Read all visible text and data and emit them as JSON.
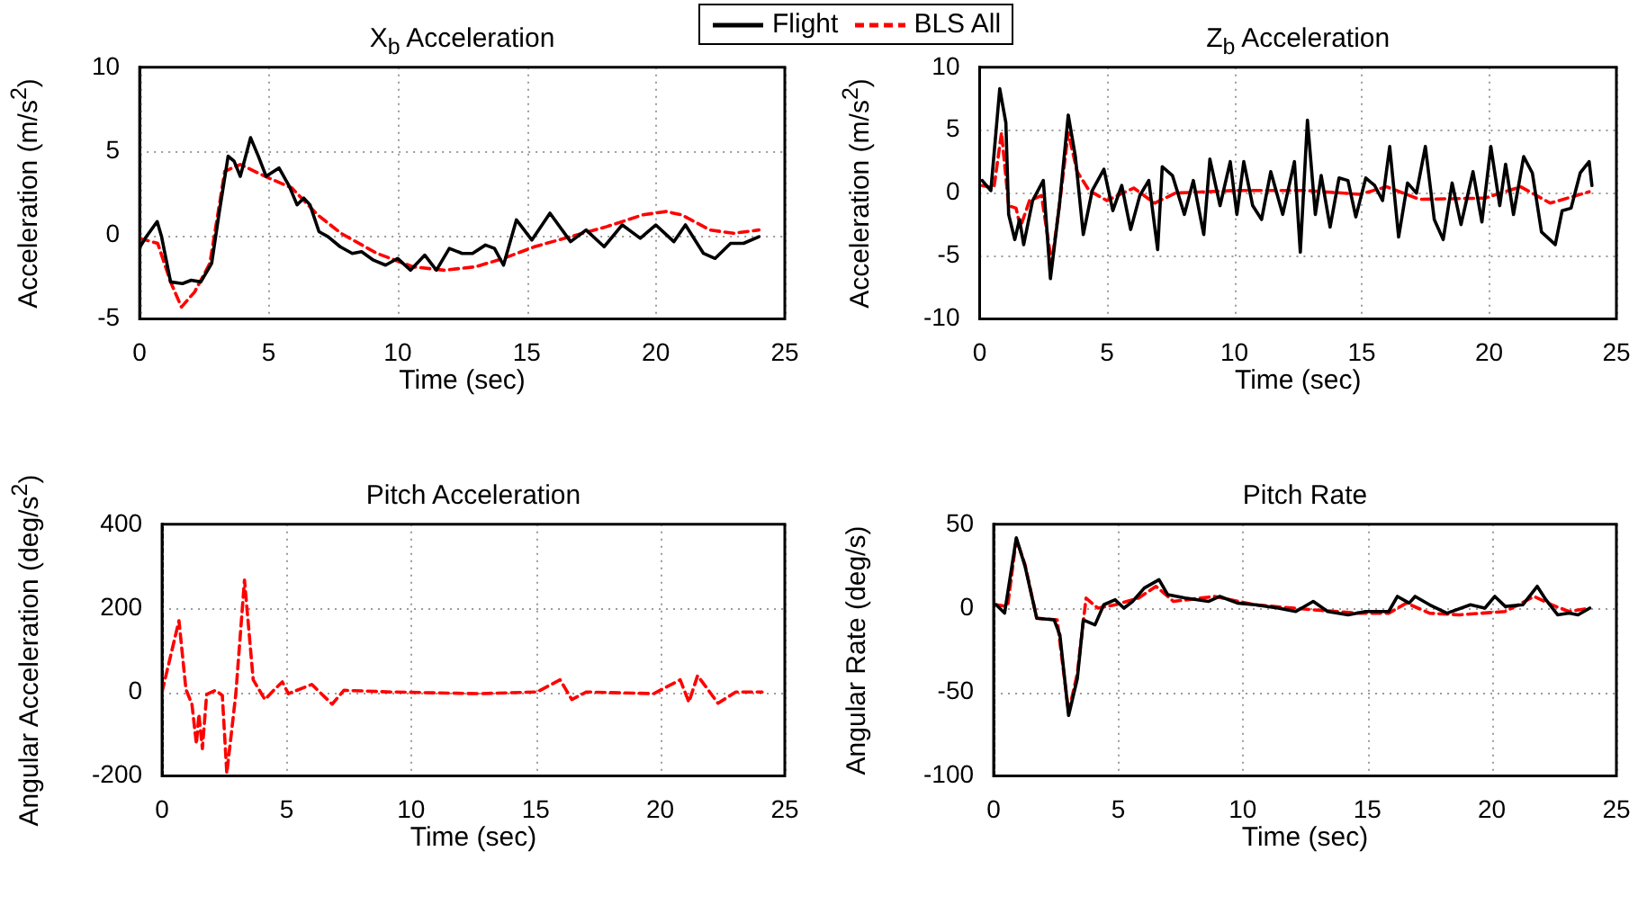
{
  "chart_data": [
    {
      "type": "line",
      "title": "X$_{b}$ Acceleration",
      "xlabel": "Time (sec)",
      "ylabel": "Acceleration (m/s$^{2}$)",
      "xlim": [
        0,
        25
      ],
      "xticks": [
        0,
        5,
        10,
        15,
        20,
        25
      ],
      "ylim": [
        -5,
        10
      ],
      "yticks": [
        -5,
        0,
        5,
        10
      ],
      "grid": true,
      "legend": "top right",
      "series": [
        {
          "name": "Flight",
          "color": "#000000",
          "line_style": "solid",
          "x": [
            0.02,
            0.26,
            0.68,
            0.85,
            1.2,
            1.66,
            2.0,
            2.37,
            2.79,
            3.07,
            3.43,
            3.66,
            3.9,
            4.3,
            4.6,
            4.9,
            5.4,
            5.8,
            6.1,
            6.36,
            6.6,
            6.95,
            7.3,
            7.77,
            8.24,
            8.6,
            9.06,
            9.53,
            10.0,
            10.5,
            11.05,
            11.5,
            12.0,
            12.5,
            12.9,
            13.4,
            13.75,
            14.1,
            14.6,
            15.2,
            15.9,
            16.7,
            17.3,
            18.0,
            18.7,
            19.4,
            20.0,
            20.7,
            21.15,
            21.85,
            22.3,
            22.9,
            23.4,
            24.0
          ],
          "values": [
            -0.7,
            -0.1,
            0.8,
            -0.1,
            -2.8,
            -2.9,
            -2.7,
            -2.8,
            -1.7,
            1.2,
            4.7,
            4.4,
            3.5,
            5.8,
            4.7,
            3.5,
            4.0,
            2.9,
            1.8,
            2.2,
            1.8,
            0.2,
            -0.1,
            -0.7,
            -1.1,
            -1.0,
            -1.5,
            -1.8,
            -1.4,
            -2.1,
            -1.2,
            -2.1,
            -0.8,
            -1.1,
            -1.1,
            -0.6,
            -0.8,
            -1.8,
            0.9,
            -0.3,
            1.3,
            -0.4,
            0.3,
            -0.7,
            0.6,
            -0.2,
            0.6,
            -0.4,
            0.6,
            -1.1,
            -1.4,
            -0.5,
            -0.5,
            -0.1
          ]
        },
        {
          "name": "BLS All",
          "color": "#ff0000",
          "line_style": "dashed",
          "x": [
            0,
            0.7,
            1.2,
            1.62,
            2.13,
            2.72,
            3.3,
            3.9,
            5.0,
            5.9,
            6.9,
            7.8,
            9.2,
            10.6,
            11.8,
            13.0,
            14.1,
            15.3,
            16.7,
            18.1,
            19.5,
            20.4,
            21.0,
            22.1,
            23.0,
            24.0
          ],
          "values": [
            -0.2,
            -0.5,
            -2.8,
            -4.3,
            -3.4,
            -1.7,
            3.8,
            4.2,
            3.4,
            2.8,
            1.2,
            0.1,
            -1.1,
            -1.9,
            -2.1,
            -1.9,
            -1.4,
            -0.7,
            -0.1,
            0.5,
            1.2,
            1.4,
            1.2,
            0.3,
            0.1,
            0.3
          ]
        }
      ]
    },
    {
      "type": "line",
      "title": "Z$_{b}$ Acceleration",
      "xlabel": "Time (sec)",
      "ylabel": "Acceleration (m/s$^{2}$)",
      "xlim": [
        0,
        25
      ],
      "xticks": [
        0,
        5,
        10,
        15,
        20,
        25
      ],
      "ylim": [
        -10,
        10
      ],
      "yticks": [
        -10,
        -5,
        0,
        5,
        10
      ],
      "grid": true,
      "series": [
        {
          "color": "#000000",
          "line_style": "solid",
          "x": [
            0.1,
            0.44,
            0.79,
            1.03,
            1.14,
            1.38,
            1.57,
            1.73,
            2.08,
            2.5,
            2.78,
            3.13,
            3.48,
            3.76,
            4.07,
            4.42,
            4.88,
            5.23,
            5.58,
            5.93,
            6.29,
            6.64,
            6.99,
            7.17,
            7.57,
            8.04,
            8.39,
            8.8,
            9.04,
            9.44,
            9.84,
            10.1,
            10.37,
            10.72,
            11.07,
            11.43,
            11.9,
            12.36,
            12.59,
            12.87,
            13.18,
            13.41,
            13.76,
            14.11,
            14.46,
            14.77,
            15.16,
            15.51,
            15.82,
            16.1,
            16.45,
            16.8,
            17.15,
            17.5,
            17.85,
            18.2,
            18.55,
            18.9,
            19.37,
            19.72,
            20.07,
            20.42,
            20.65,
            20.96,
            21.36,
            21.7,
            22.06,
            22.6,
            22.87,
            23.22,
            23.58,
            23.93,
            24.04
          ],
          "values": [
            1.0,
            0.2,
            8.3,
            5.6,
            -1.7,
            -3.7,
            -2.1,
            -4.1,
            -0.6,
            1.0,
            -6.8,
            -1.0,
            6.2,
            2.9,
            -3.3,
            0.2,
            1.9,
            -1.4,
            0.6,
            -2.9,
            -0.2,
            1.0,
            -4.5,
            2.1,
            1.4,
            -1.7,
            1.0,
            -3.3,
            2.7,
            -1.0,
            2.5,
            -1.7,
            2.5,
            -1.0,
            -2.1,
            1.7,
            -1.7,
            2.5,
            -4.7,
            5.8,
            -1.7,
            1.4,
            -2.7,
            1.2,
            1.0,
            -1.9,
            1.2,
            0.6,
            -0.6,
            3.7,
            -3.5,
            0.8,
            0,
            3.7,
            -2.1,
            -3.7,
            0.8,
            -2.5,
            1.7,
            -2.3,
            3.7,
            -1.0,
            2.3,
            -1.7,
            2.9,
            1.6,
            -3.1,
            -4.1,
            -1.4,
            -1.2,
            1.6,
            2.5,
            0.6
          ]
        },
        {
          "color": "#ff0000",
          "line_style": "dashed",
          "x": [
            0.1,
            0.56,
            0.86,
            1.14,
            1.43,
            1.6,
            1.96,
            2.43,
            2.83,
            3.13,
            3.48,
            3.83,
            4.3,
            5.0,
            6.05,
            6.87,
            7.69,
            10.0,
            12.83,
            14.93,
            15.98,
            17.27,
            19.84,
            21.24,
            22.4,
            23.93
          ],
          "values": [
            0.6,
            0.4,
            4.8,
            -1.0,
            -1.2,
            -2.7,
            -0.6,
            -0.2,
            -5.6,
            -1.0,
            4.8,
            1.7,
            0.2,
            -0.6,
            0.4,
            -0.8,
            0,
            0.2,
            0.2,
            -0.1,
            0.5,
            -0.5,
            -0.4,
            0.5,
            -0.8,
            0.1
          ]
        }
      ]
    },
    {
      "type": "line",
      "title": "Pitch Acceleration",
      "xlabel": "Time (sec)",
      "ylabel": "Angular Acceleration (deg/s$^{2}$)",
      "xlim": [
        0,
        25
      ],
      "xticks": [
        0,
        5,
        10,
        15,
        20,
        25
      ],
      "ylim": [
        -200,
        400
      ],
      "yticks": [
        -200,
        0,
        200,
        400
      ],
      "grid": true,
      "series": [
        {
          "color": "#ff0000",
          "line_style": "dashed",
          "x": [
            0,
            0.68,
            0.96,
            1.2,
            1.38,
            1.48,
            1.62,
            1.79,
            2.14,
            2.42,
            2.6,
            2.96,
            3.31,
            3.66,
            4.13,
            4.48,
            4.83,
            5.07,
            6.01,
            6.83,
            7.3,
            9.18,
            12.7,
            15.05,
            15.98,
            16.45,
            17.04,
            19.74,
            20.8,
            21.15,
            21.5,
            22.32,
            23.03,
            24.09
          ],
          "values": [
            0,
            170,
            6,
            -29,
            -124,
            -53,
            -135,
            -6,
            4,
            -8,
            -194,
            -6,
            267,
            29,
            -18,
            4,
            24,
            -4,
            18,
            -29,
            4,
            0,
            -4,
            0,
            29,
            -18,
            0,
            -4,
            29,
            -24,
            39,
            -27,
            0,
            0
          ]
        }
      ]
    },
    {
      "type": "line",
      "title": "Pitch Rate",
      "xlabel": "Time (sec)",
      "ylabel": "Angular Rate (deg/s)",
      "xlim": [
        0,
        25
      ],
      "xticks": [
        0,
        5,
        10,
        15,
        20,
        25
      ],
      "ylim": [
        -100,
        50
      ],
      "yticks": [
        -100,
        -50,
        0,
        50
      ],
      "grid": true,
      "series": [
        {
          "color": "#000000",
          "line_style": "solid",
          "x": [
            0.1,
            0.44,
            0.91,
            1.26,
            1.73,
            2.43,
            2.66,
            3.01,
            3.36,
            3.6,
            4.07,
            4.42,
            4.88,
            5.23,
            5.58,
            6.05,
            6.64,
            6.99,
            7.69,
            8.62,
            9.08,
            9.79,
            10.5,
            11.43,
            12.13,
            12.83,
            13.41,
            14.23,
            14.93,
            15.86,
            16.21,
            16.68,
            16.92,
            17.5,
            18.2,
            19.14,
            19.72,
            20.12,
            20.54,
            21.24,
            21.82,
            22.17,
            22.64,
            23.1,
            23.46,
            23.93
          ],
          "values": [
            2,
            -3,
            42,
            25,
            -6,
            -7,
            -16,
            -64,
            -42,
            -7,
            -10,
            2,
            5,
            0,
            4,
            12,
            17,
            8,
            6,
            4,
            7,
            3,
            2,
            0,
            -2,
            4,
            -2,
            -4,
            -2,
            -2,
            7,
            3,
            7,
            2,
            -3,
            2,
            0,
            7,
            1,
            2,
            13,
            5,
            -4,
            -3,
            -4,
            0
          ]
        },
        {
          "color": "#ff0000",
          "line_style": "dashed",
          "x": [
            0.1,
            0.56,
            0.91,
            1.26,
            1.73,
            2.55,
            3.01,
            3.36,
            3.71,
            4.18,
            4.88,
            5.82,
            6.52,
            7.22,
            8.86,
            10.5,
            12.83,
            14.7,
            15.86,
            16.57,
            17.5,
            18.67,
            20.54,
            21.7,
            22.4,
            23.1,
            23.93
          ],
          "values": [
            2,
            1,
            41,
            26,
            -6,
            -7,
            -62,
            -39,
            6,
            0,
            2,
            6,
            13,
            4,
            7,
            2,
            -1,
            -3,
            -3,
            3,
            -3,
            -4,
            -2,
            7,
            2,
            -2,
            0
          ]
        }
      ]
    }
  ]
}
